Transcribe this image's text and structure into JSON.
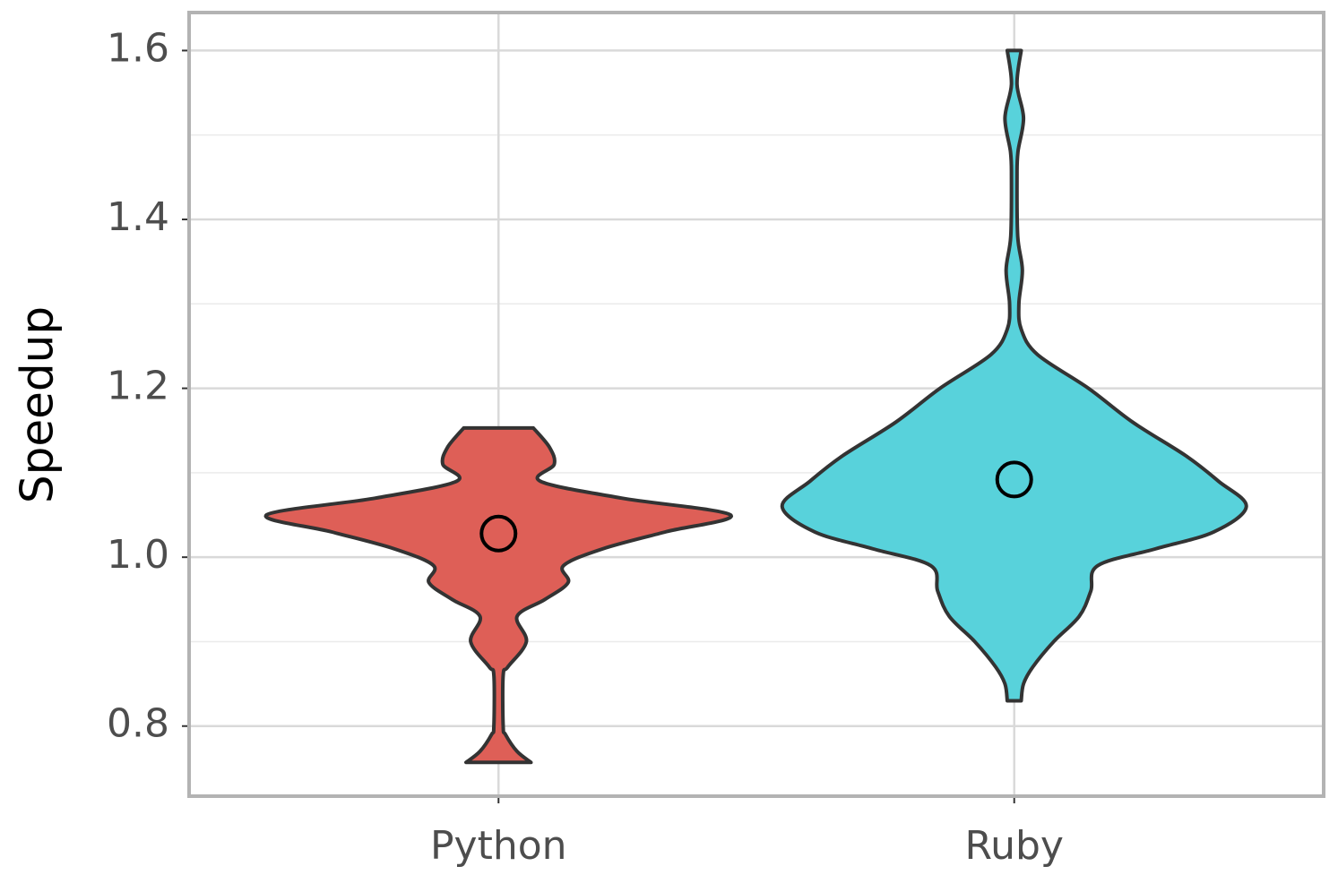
{
  "chart_data": {
    "type": "violin",
    "y_label": "Speedup",
    "categories": [
      "Python",
      "Ruby"
    ],
    "violins": [
      {
        "color": "#de5f57",
        "y": [
          0.757,
          0.77,
          0.79,
          0.8,
          0.86,
          0.87,
          0.9,
          0.93,
          0.95,
          0.97,
          0.99,
          1.01,
          1.03,
          1.05,
          1.07,
          1.09,
          1.11,
          1.13,
          1.153
        ],
        "widths": [
          0.14,
          0.08,
          0.03,
          0.02,
          0.02,
          0.04,
          0.12,
          0.08,
          0.2,
          0.3,
          0.28,
          0.45,
          0.72,
          1.0,
          0.53,
          0.18,
          0.24,
          0.22,
          0.15
        ],
        "mean": 1.028
      },
      {
        "color": "#58d2db",
        "y": [
          0.83,
          0.85,
          0.87,
          0.9,
          0.93,
          0.96,
          0.99,
          1.01,
          1.03,
          1.06,
          1.09,
          1.12,
          1.16,
          1.2,
          1.24,
          1.27,
          1.3,
          1.34,
          1.38,
          1.45,
          1.48,
          1.52,
          1.56,
          1.6
        ],
        "widths": [
          0.03,
          0.04,
          0.08,
          0.17,
          0.28,
          0.33,
          0.36,
          0.61,
          0.86,
          1.0,
          0.88,
          0.74,
          0.51,
          0.32,
          0.1,
          0.03,
          0.02,
          0.035,
          0.015,
          0.012,
          0.016,
          0.04,
          0.012,
          0.03
        ],
        "mean": 1.092
      }
    ],
    "ylim": [
      0.717,
      1.645
    ],
    "yticks": [
      0.8,
      {
        "value": 1,
        "label": "1.0"
      },
      1.2,
      1.4,
      1.6
    ],
    "minor_yticks": [
      0.9,
      1.1,
      1.3,
      1.5
    ],
    "grid": true
  }
}
